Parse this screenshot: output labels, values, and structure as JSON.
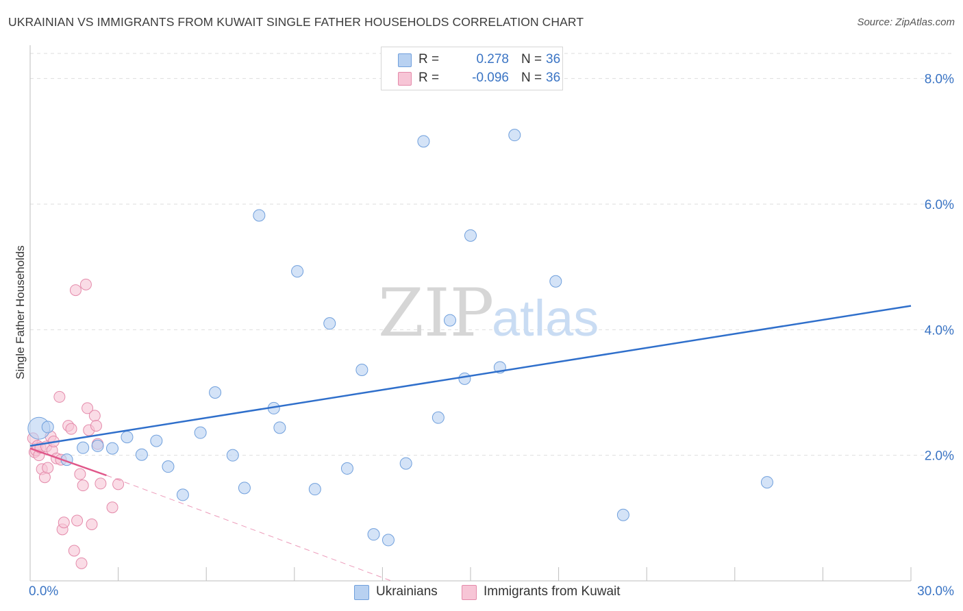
{
  "header": {
    "title": "UKRAINIAN VS IMMIGRANTS FROM KUWAIT SINGLE FATHER HOUSEHOLDS CORRELATION CHART",
    "source": "Source: ZipAtlas.com"
  },
  "legend": {
    "rows": [
      {
        "r_label": "R =",
        "r_value": "0.278",
        "n_label": "N =",
        "n_value": "36"
      },
      {
        "r_label": "R =",
        "r_value": "-0.096",
        "n_label": "N =",
        "n_value": "36"
      }
    ]
  },
  "bottom_legend": {
    "items": [
      {
        "label": "Ukrainians"
      },
      {
        "label": "Immigrants from Kuwait"
      }
    ]
  },
  "watermark": {
    "zip": "ZIP",
    "atlas": "atlas"
  },
  "colors": {
    "blue_fill": "#b8d1f1",
    "blue_stroke": "#6f9fdc",
    "blue_line": "#2f6fcb",
    "pink_fill": "#f7c5d6",
    "pink_stroke": "#e48aaa",
    "pink_line": "#e0578a",
    "axis_text": "#3a74c4",
    "grid": "#dedede"
  },
  "chart_data": {
    "type": "scatter",
    "title": "UKRAINIAN VS IMMIGRANTS FROM KUWAIT SINGLE FATHER HOUSEHOLDS CORRELATION CHART",
    "xlabel": "",
    "ylabel": "Single Father Households",
    "xlim": [
      0,
      30
    ],
    "ylim": [
      0,
      8.4
    ],
    "x_tick_labels": [
      "0.0%",
      "30.0%"
    ],
    "y_ticks": [
      2,
      4,
      6,
      8
    ],
    "y_tick_labels": [
      "2.0%",
      "4.0%",
      "6.0%",
      "8.0%"
    ],
    "grid": true,
    "series": [
      {
        "name": "Ukrainians",
        "color": "#b8d1f1",
        "points": [
          [
            0.3,
            2.43
          ],
          [
            1.25,
            1.93
          ],
          [
            1.8,
            2.12
          ],
          [
            2.3,
            2.15
          ],
          [
            2.8,
            2.11
          ],
          [
            3.3,
            2.29
          ],
          [
            3.8,
            2.01
          ],
          [
            4.3,
            2.23
          ],
          [
            4.7,
            1.82
          ],
          [
            5.2,
            1.37
          ],
          [
            5.8,
            2.36
          ],
          [
            6.3,
            3.0
          ],
          [
            6.9,
            2.0
          ],
          [
            7.3,
            1.48
          ],
          [
            7.8,
            5.82
          ],
          [
            8.3,
            2.75
          ],
          [
            8.5,
            2.44
          ],
          [
            9.1,
            4.93
          ],
          [
            9.7,
            1.46
          ],
          [
            10.2,
            4.1
          ],
          [
            10.8,
            1.79
          ],
          [
            11.3,
            3.36
          ],
          [
            11.7,
            0.74
          ],
          [
            12.2,
            0.65
          ],
          [
            12.8,
            1.87
          ],
          [
            13.4,
            7.0
          ],
          [
            13.9,
            2.6
          ],
          [
            14.3,
            4.15
          ],
          [
            14.8,
            3.22
          ],
          [
            15.0,
            5.5
          ],
          [
            16.0,
            3.4
          ],
          [
            16.5,
            7.1
          ],
          [
            17.9,
            4.77
          ],
          [
            20.2,
            1.05
          ],
          [
            25.1,
            1.57
          ],
          [
            0.6,
            2.45
          ]
        ],
        "trend": {
          "x": [
            0,
            30
          ],
          "y": [
            2.15,
            4.38
          ]
        }
      },
      {
        "name": "Immigrants from Kuwait",
        "color": "#f7c5d6",
        "points": [
          [
            0.1,
            2.27
          ],
          [
            0.15,
            2.05
          ],
          [
            0.2,
            2.08
          ],
          [
            0.25,
            2.15
          ],
          [
            0.3,
            2.0
          ],
          [
            0.35,
            2.12
          ],
          [
            0.4,
            1.78
          ],
          [
            0.5,
            1.65
          ],
          [
            0.55,
            2.14
          ],
          [
            0.6,
            1.8
          ],
          [
            0.7,
            2.3
          ],
          [
            0.75,
            2.08
          ],
          [
            0.8,
            2.22
          ],
          [
            0.9,
            1.95
          ],
          [
            1.0,
            2.93
          ],
          [
            1.05,
            1.93
          ],
          [
            1.1,
            0.82
          ],
          [
            1.15,
            0.93
          ],
          [
            1.3,
            2.47
          ],
          [
            1.4,
            2.42
          ],
          [
            1.5,
            0.48
          ],
          [
            1.55,
            4.63
          ],
          [
            1.6,
            0.96
          ],
          [
            1.7,
            1.7
          ],
          [
            1.75,
            0.28
          ],
          [
            1.8,
            1.52
          ],
          [
            1.9,
            4.72
          ],
          [
            1.95,
            2.75
          ],
          [
            2.0,
            2.4
          ],
          [
            2.1,
            0.9
          ],
          [
            2.2,
            2.63
          ],
          [
            2.25,
            2.47
          ],
          [
            2.3,
            2.18
          ],
          [
            2.4,
            1.55
          ],
          [
            2.8,
            1.17
          ],
          [
            3.0,
            1.54
          ]
        ],
        "trend": {
          "x": [
            0,
            2.6
          ],
          "y": [
            2.11,
            1.68
          ]
        },
        "trend_extension": {
          "x": [
            2.6,
            12.3
          ],
          "y": [
            1.68,
            0.0
          ]
        }
      }
    ]
  }
}
